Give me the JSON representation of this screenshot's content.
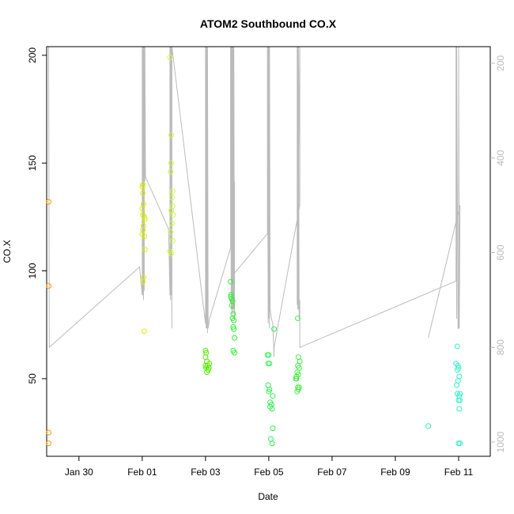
{
  "chart_data": {
    "type": "scatter",
    "title": "ATOM2 Southbound CO.X",
    "xlabel": "Date",
    "ylabel": "CO.X",
    "x_axis": {
      "kind": "date",
      "range": [
        "2024-01-28T23:30",
        "2024-02-12T00:00"
      ],
      "ticks": [
        {
          "date": "2024-01-30",
          "label": "Jan 30"
        },
        {
          "date": "2024-02-01",
          "label": "Feb 01"
        },
        {
          "date": "2024-02-03",
          "label": "Feb 03"
        },
        {
          "date": "2024-02-05",
          "label": "Feb 05"
        },
        {
          "date": "2024-02-07",
          "label": "Feb 07"
        },
        {
          "date": "2024-02-09",
          "label": "Feb 09"
        },
        {
          "date": "2024-02-11",
          "label": "Feb 11"
        }
      ]
    },
    "y_left": {
      "range": [
        14,
        204
      ],
      "ticks": [
        {
          "value": 50,
          "label": "50"
        },
        {
          "value": 100,
          "label": "100"
        },
        {
          "value": 150,
          "label": "150"
        },
        {
          "value": 200,
          "label": "200"
        }
      ]
    },
    "y_right": {
      "reversed": true,
      "range": [
        1030,
        165
      ],
      "ticks": [
        {
          "value": 200,
          "label": "200"
        },
        {
          "value": 400,
          "label": "400"
        },
        {
          "value": 600,
          "label": "600"
        },
        {
          "value": 800,
          "label": "800"
        },
        {
          "value": 1000,
          "label": "1000"
        }
      ]
    },
    "colors": {
      "jan29": "#ff9900",
      "feb01": "#ddee00",
      "feb02": "#ccff33",
      "feb03": "#55ee00",
      "feb04": "#33ee33",
      "feb05": "#33ee55",
      "feb06": "#44ee44",
      "feb10": "#33eeaa",
      "feb11": "#33eecc",
      "overlay_line": "#bbbbbb",
      "axis": "#000000",
      "right_axis": "#bbbbbb"
    },
    "series": [
      {
        "color_key": "jan29",
        "points": [
          [
            "2024-01-29T01:00",
            132
          ],
          [
            "2024-01-29T01:00",
            93
          ],
          [
            "2024-01-29T01:00",
            25
          ],
          [
            "2024-01-29T01:00",
            20
          ]
        ]
      },
      {
        "color_key": "feb01",
        "points": [
          [
            "2024-02-01T00:00",
            139
          ],
          [
            "2024-02-01T00:30",
            136
          ],
          [
            "2024-02-01T01:00",
            131
          ],
          [
            "2024-02-01T00:00",
            129
          ],
          [
            "2024-02-01T00:30",
            126
          ],
          [
            "2024-02-01T02:00",
            124
          ],
          [
            "2024-02-01T01:00",
            121
          ],
          [
            "2024-02-01T00:30",
            119
          ],
          [
            "2024-02-01T00:00",
            117
          ],
          [
            "2024-02-01T01:30",
            116
          ],
          [
            "2024-02-01T02:00",
            110
          ],
          [
            "2024-02-01T01:00",
            97
          ],
          [
            "2024-02-01T00:30",
            95
          ],
          [
            "2024-02-01T01:30",
            72
          ],
          [
            "2024-02-01T00:30",
            140
          ],
          [
            "2024-02-01T01:30",
            125
          ]
        ]
      },
      {
        "color_key": "feb02",
        "points": [
          [
            "2024-02-01T21:00",
            199
          ],
          [
            "2024-02-01T22:00",
            163
          ],
          [
            "2024-02-01T22:00",
            150
          ],
          [
            "2024-02-01T21:30",
            146
          ],
          [
            "2024-02-01T23:00",
            137
          ],
          [
            "2024-02-01T22:30",
            134
          ],
          [
            "2024-02-01T23:00",
            130
          ],
          [
            "2024-02-01T22:00",
            128
          ],
          [
            "2024-02-01T23:30",
            126
          ],
          [
            "2024-02-01T22:30",
            122
          ],
          [
            "2024-02-01T21:30",
            118
          ],
          [
            "2024-02-01T23:00",
            114
          ],
          [
            "2024-02-01T21:00",
            109
          ],
          [
            "2024-02-01T22:00",
            108
          ]
        ]
      },
      {
        "color_key": "feb03",
        "points": [
          [
            "2024-02-03T00:00",
            63
          ],
          [
            "2024-02-03T00:30",
            62
          ],
          [
            "2024-02-03T00:00",
            60
          ],
          [
            "2024-02-03T01:00",
            58
          ],
          [
            "2024-02-03T03:00",
            57
          ],
          [
            "2024-02-03T01:30",
            56
          ],
          [
            "2024-02-03T00:30",
            55
          ],
          [
            "2024-02-03T02:00",
            54
          ],
          [
            "2024-02-03T01:00",
            53
          ],
          [
            "2024-02-03T02:30",
            55
          ],
          [
            "2024-02-03T00:00",
            56
          ]
        ]
      },
      {
        "color_key": "feb04",
        "points": [
          [
            "2024-02-03T19:00",
            95
          ],
          [
            "2024-02-03T19:30",
            89
          ],
          [
            "2024-02-03T19:00",
            88
          ],
          [
            "2024-02-03T20:00",
            87
          ],
          [
            "2024-02-03T20:30",
            86
          ],
          [
            "2024-02-03T20:00",
            84
          ],
          [
            "2024-02-03T21:00",
            80
          ],
          [
            "2024-02-03T20:30",
            78
          ],
          [
            "2024-02-03T21:30",
            77
          ],
          [
            "2024-02-03T21:00",
            74
          ],
          [
            "2024-02-03T21:30",
            73
          ],
          [
            "2024-02-03T22:00",
            69
          ],
          [
            "2024-02-03T21:00",
            63
          ],
          [
            "2024-02-03T22:00",
            62
          ]
        ]
      },
      {
        "color_key": "feb05",
        "points": [
          [
            "2024-02-04T23:00",
            61
          ],
          [
            "2024-02-05T00:00",
            61
          ],
          [
            "2024-02-04T23:30",
            57
          ],
          [
            "2024-02-05T00:30",
            57
          ],
          [
            "2024-02-05T04:00",
            73
          ],
          [
            "2024-02-04T23:30",
            47
          ],
          [
            "2024-02-05T00:30",
            45
          ],
          [
            "2024-02-05T00:00",
            44
          ],
          [
            "2024-02-05T03:00",
            42
          ],
          [
            "2024-02-05T01:00",
            39
          ],
          [
            "2024-02-05T02:00",
            38
          ],
          [
            "2024-02-05T01:00",
            37
          ],
          [
            "2024-02-05T02:30",
            36
          ],
          [
            "2024-02-05T03:00",
            27
          ],
          [
            "2024-02-05T01:30",
            22
          ],
          [
            "2024-02-05T02:30",
            20
          ]
        ]
      },
      {
        "color_key": "feb06",
        "points": [
          [
            "2024-02-05T22:00",
            78
          ],
          [
            "2024-02-05T22:30",
            60
          ],
          [
            "2024-02-05T23:30",
            58
          ],
          [
            "2024-02-05T22:00",
            56
          ],
          [
            "2024-02-05T23:00",
            55
          ],
          [
            "2024-02-05T21:30",
            53
          ],
          [
            "2024-02-05T22:30",
            52
          ],
          [
            "2024-02-05T20:30",
            50
          ],
          [
            "2024-02-05T21:00",
            50
          ],
          [
            "2024-02-05T22:00",
            46
          ],
          [
            "2024-02-05T22:30",
            45
          ],
          [
            "2024-02-05T21:30",
            44
          ],
          [
            "2024-02-05T23:00",
            46
          ],
          [
            "2024-02-05T21:00",
            51
          ]
        ]
      },
      {
        "color_key": "feb10",
        "points": [
          [
            "2024-02-10T01:00",
            28
          ]
        ]
      },
      {
        "color_key": "feb11",
        "points": [
          [
            "2024-02-10T23:00",
            65
          ],
          [
            "2024-02-10T22:00",
            57
          ],
          [
            "2024-02-10T23:30",
            56
          ],
          [
            "2024-02-11T00:00",
            55
          ],
          [
            "2024-02-10T23:00",
            54
          ],
          [
            "2024-02-11T00:30",
            51
          ],
          [
            "2024-02-10T23:30",
            49
          ],
          [
            "2024-02-10T22:30",
            47
          ],
          [
            "2024-02-11T01:00",
            43
          ],
          [
            "2024-02-10T23:00",
            43
          ],
          [
            "2024-02-11T00:30",
            42
          ],
          [
            "2024-02-11T01:00",
            40
          ],
          [
            "2024-02-11T00:00",
            40
          ],
          [
            "2024-02-11T00:30",
            36
          ],
          [
            "2024-02-11T00:00",
            20
          ],
          [
            "2024-02-11T01:00",
            20
          ]
        ]
      }
    ],
    "overlay_line": {
      "axis": "right",
      "points": [
        [
          "2024-01-29T01:00",
          165
        ],
        [
          "2024-01-29T01:00",
          165
        ],
        [
          "2024-01-29T01:30",
          800
        ],
        [
          "2024-01-31T22:00",
          630
        ],
        [
          "2024-02-01T00:00",
          690
        ],
        [
          "2024-02-01T00:00",
          165
        ],
        [
          "2024-02-01T00:30",
          690
        ],
        [
          "2024-02-01T00:30",
          165
        ],
        [
          "2024-02-01T01:00",
          700
        ],
        [
          "2024-02-01T01:00",
          165
        ],
        [
          "2024-02-01T01:30",
          680
        ],
        [
          "2024-02-01T01:30",
          165
        ],
        [
          "2024-02-01T02:00",
          450
        ],
        [
          "2024-02-01T02:00",
          165
        ],
        [
          "2024-02-01T02:30",
          440
        ],
        [
          "2024-02-01T20:00",
          550
        ],
        [
          "2024-02-01T21:00",
          690
        ],
        [
          "2024-02-01T21:00",
          165
        ],
        [
          "2024-02-01T21:30",
          700
        ],
        [
          "2024-02-01T21:30",
          165
        ],
        [
          "2024-02-01T22:00",
          690
        ],
        [
          "2024-02-01T22:00",
          165
        ],
        [
          "2024-02-01T22:30",
          760
        ],
        [
          "2024-02-01T22:30",
          165
        ],
        [
          "2024-02-03T00:00",
          750
        ],
        [
          "2024-02-03T00:00",
          165
        ],
        [
          "2024-02-03T00:30",
          760
        ],
        [
          "2024-02-03T00:30",
          165
        ],
        [
          "2024-02-03T01:00",
          760
        ],
        [
          "2024-02-03T01:00",
          165
        ],
        [
          "2024-02-03T01:30",
          770
        ],
        [
          "2024-02-03T01:30",
          165
        ],
        [
          "2024-02-03T02:00",
          760
        ],
        [
          "2024-02-03T03:00",
          740
        ],
        [
          "2024-02-03T19:00",
          590
        ],
        [
          "2024-02-03T19:00",
          165
        ],
        [
          "2024-02-03T19:30",
          720
        ],
        [
          "2024-02-03T19:30",
          165
        ],
        [
          "2024-02-03T20:00",
          730
        ],
        [
          "2024-02-03T20:00",
          165
        ],
        [
          "2024-02-03T20:30",
          720
        ],
        [
          "2024-02-03T20:30",
          165
        ],
        [
          "2024-02-03T21:00",
          740
        ],
        [
          "2024-02-03T21:00",
          165
        ],
        [
          "2024-02-03T21:30",
          720
        ],
        [
          "2024-02-03T21:30",
          165
        ],
        [
          "2024-02-03T22:00",
          740
        ],
        [
          "2024-02-03T22:00",
          450
        ],
        [
          "2024-02-03T20:00",
          650
        ],
        [
          "2024-02-04T23:00",
          560
        ],
        [
          "2024-02-04T23:00",
          165
        ],
        [
          "2024-02-04T23:30",
          750
        ],
        [
          "2024-02-04T23:30",
          165
        ],
        [
          "2024-02-05T00:00",
          740
        ],
        [
          "2024-02-05T00:00",
          165
        ],
        [
          "2024-02-05T00:30",
          760
        ],
        [
          "2024-02-05T00:30",
          165
        ],
        [
          "2024-02-05T01:00",
          720
        ],
        [
          "2024-02-05T02:00",
          740
        ],
        [
          "2024-02-05T03:00",
          750
        ],
        [
          "2024-02-05T04:00",
          820
        ],
        [
          "2024-02-05T04:00",
          800
        ],
        [
          "2024-02-05T23:30",
          500
        ],
        [
          "2024-02-05T23:30",
          165
        ],
        [
          "2024-02-05T21:30",
          710
        ],
        [
          "2024-02-05T21:30",
          165
        ],
        [
          "2024-02-05T22:00",
          720
        ],
        [
          "2024-02-05T22:00",
          165
        ],
        [
          "2024-02-05T22:30",
          720
        ],
        [
          "2024-02-05T22:30",
          165
        ],
        [
          "2024-02-05T23:00",
          740
        ],
        [
          "2024-02-05T23:30",
          700
        ],
        [
          "2024-02-05T23:30",
          800
        ],
        [
          "2024-02-10T22:00",
          660
        ],
        [
          "2024-02-10T22:00",
          165
        ],
        [
          "2024-02-10T22:30",
          740
        ],
        [
          "2024-02-10T22:30",
          165
        ],
        [
          "2024-02-10T23:30",
          760
        ],
        [
          "2024-02-11T00:00",
          760
        ],
        [
          "2024-02-11T00:00",
          165
        ],
        [
          "2024-02-11T00:30",
          760
        ],
        [
          "2024-02-11T01:00",
          500
        ],
        [
          "2024-02-10T01:00",
          780
        ]
      ]
    }
  }
}
